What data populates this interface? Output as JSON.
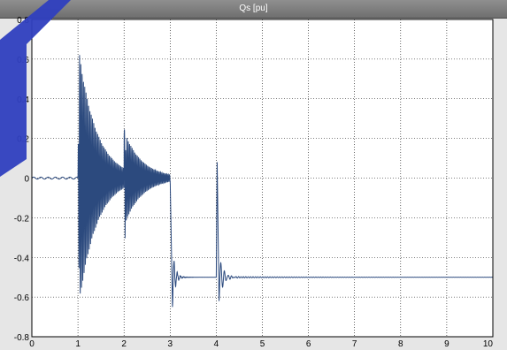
{
  "window": {
    "title": "Qs [pu]"
  },
  "chart_data": {
    "type": "line",
    "title": "Qs [pu]",
    "xlabel": "",
    "ylabel": "",
    "xlim": [
      0,
      10
    ],
    "ylim": [
      -0.8,
      0.8
    ],
    "x_ticks": [
      "0",
      "1",
      "2",
      "3",
      "4",
      "5",
      "6",
      "7",
      "8",
      "9",
      "10"
    ],
    "y_ticks": [
      "0.8",
      "0.6",
      "0.4",
      "0.2",
      "0",
      "-0.2",
      "-0.4",
      "-0.6",
      "-0.8"
    ],
    "grid": true,
    "line_color": "#2c4a7e",
    "background_color": "#ffffff",
    "series": [
      {
        "segments": [
          {
            "t0": 0.0,
            "t1": 1.0,
            "kind": "flat",
            "level": 0.0
          },
          {
            "t0": 1.0,
            "t1": 2.0,
            "kind": "decaying-oscillation",
            "level": 0.0,
            "amplitude": 0.68,
            "period": 0.028
          },
          {
            "t0": 2.0,
            "t1": 3.0,
            "kind": "decaying-oscillation",
            "level": 0.0,
            "amplitude": 0.24,
            "period": 0.028
          },
          {
            "t0": 3.0,
            "t1": 4.0,
            "kind": "settling",
            "from": 0.0,
            "level": -0.5,
            "dip": -0.65
          },
          {
            "t0": 4.0,
            "t1": 10.0,
            "kind": "spike-settle",
            "level": -0.5,
            "spike_high": 0.08,
            "spike_low": -0.62
          }
        ]
      }
    ]
  },
  "colors": {
    "accent": "#2f3fbf",
    "frame": "#e6e6e6",
    "grid": "#000000"
  }
}
